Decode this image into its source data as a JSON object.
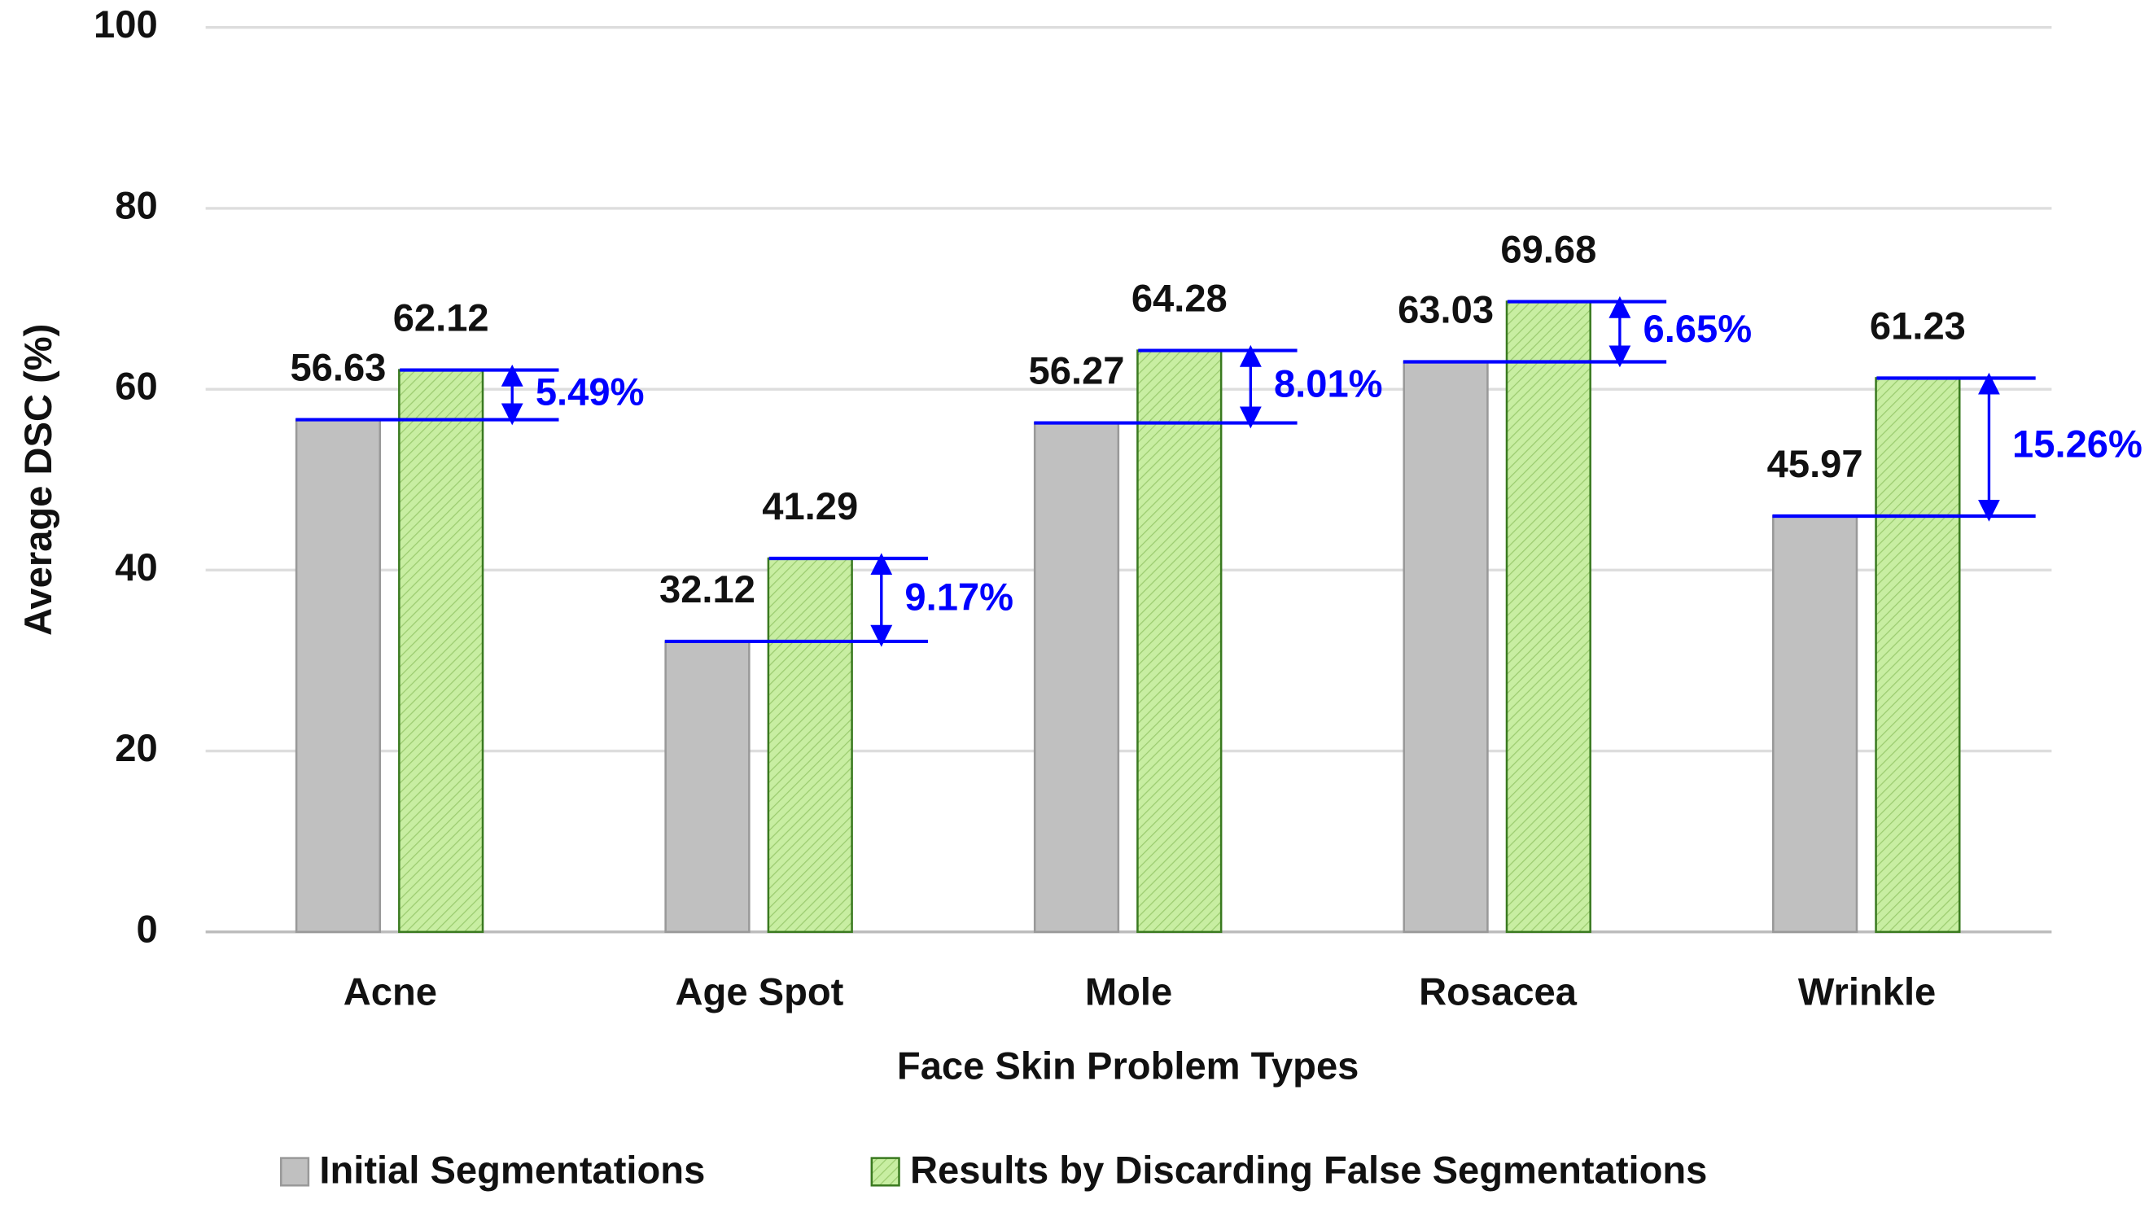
{
  "chart_data": {
    "type": "bar",
    "x_label": "Face Skin Problem Types",
    "y_label": "Average DSC (%)",
    "categories": [
      "Acne",
      "Age Spot",
      "Mole",
      "Rosacea",
      "Wrinkle"
    ],
    "series": [
      {
        "name": "Initial Segmentations",
        "color": "#c0c0c0",
        "values": [
          56.63,
          32.12,
          56.27,
          63.03,
          45.97
        ]
      },
      {
        "name": "Results by Discarding False Segmentations",
        "color": "#c8eea2",
        "values": [
          62.12,
          41.29,
          64.28,
          69.68,
          61.23
        ]
      }
    ],
    "differences": {
      "color": "#0000ff",
      "values": [
        5.49,
        9.17,
        8.01,
        6.65,
        15.26
      ],
      "value_labels": [
        "5.49%",
        "9.17%",
        "8.01%",
        "6.65%",
        "15.26%"
      ]
    },
    "ylim": [
      0,
      100
    ],
    "yticks": [
      0,
      20,
      40,
      60,
      80,
      100
    ],
    "grid": true,
    "legend": "bottom"
  }
}
